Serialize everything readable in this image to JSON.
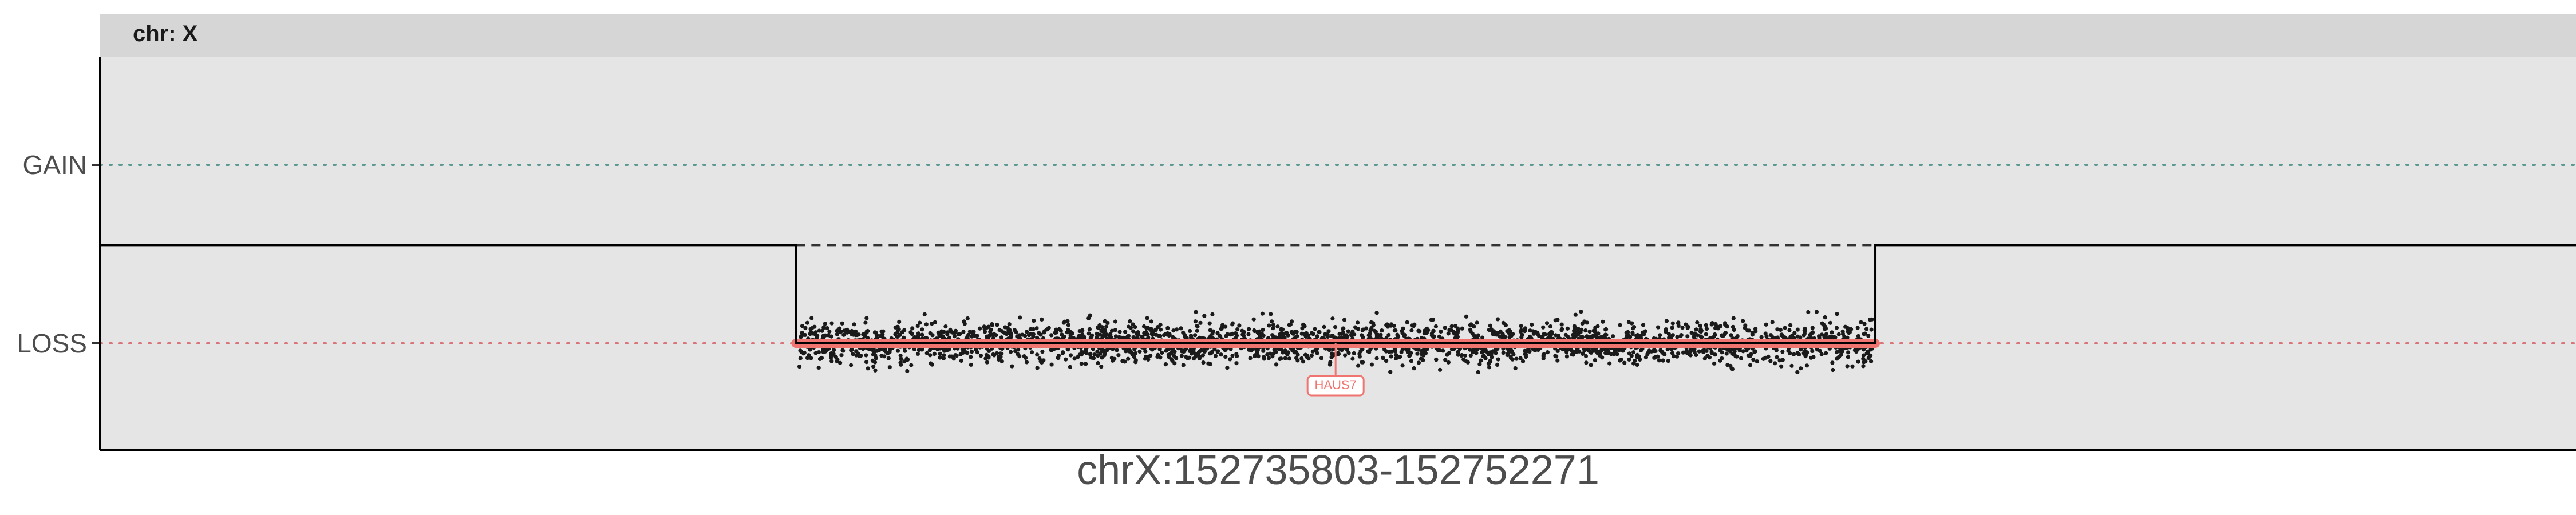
{
  "chart_data": {
    "type": "scatter",
    "panel_label": "chr: X",
    "x_label": "chrX:152735803-152752271",
    "y_categories": [
      "GAIN",
      "LOSS"
    ],
    "reference_lines": [
      {
        "category": "GAIN",
        "color": "#5b9a93",
        "style": "dotted"
      },
      {
        "category": "LOSS",
        "color": "#d9757a",
        "style": "dotted"
      }
    ],
    "region": {
      "start_fraction": 0.281,
      "end_fraction": 0.717
    },
    "copy_number_step": {
      "baseline_level": 0.55,
      "region_level": 0.0,
      "expected_level": 0.55
    },
    "loss_segment": {
      "color": "#f07470",
      "level": 0.0
    },
    "point_cloud": {
      "count": 2600,
      "center": 0.0,
      "spread": 0.18,
      "color": "#1a1a1a"
    },
    "genes": [
      {
        "name": "HAUS7",
        "position_fraction": 0.499,
        "color": "#f07470"
      }
    ],
    "colors": {
      "panel_bg": "#e5e5e5",
      "strip_bg": "#d6d6d6",
      "axis": "#000000"
    }
  }
}
